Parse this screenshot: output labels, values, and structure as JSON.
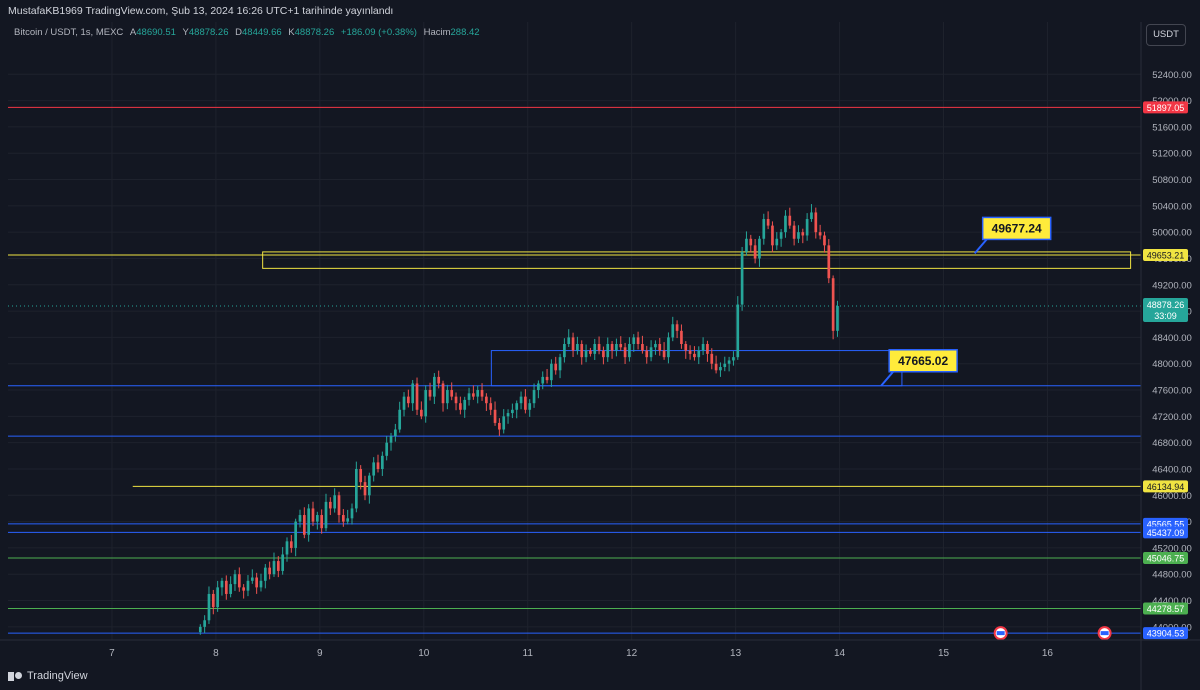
{
  "header": {
    "publisher": "MustafaKB1969 TradingView.com, Şub 13, 2024 16:26 UTC+1 tarihinde yayınlandı"
  },
  "legend": {
    "symbol": "Bitcoin / USDT, 1s, MEXC",
    "open_label": "A",
    "open": "48690.51",
    "high_label": "Y",
    "high": "48878.26",
    "low_label": "D",
    "low": "48449.66",
    "close_label": "K",
    "close": "48878.26",
    "change": "+186.09 (+0.38%)",
    "volume_label": "Hacim",
    "volume": "288.42"
  },
  "currency_button": "USDT",
  "footer": {
    "brand": "TradingView"
  },
  "colors": {
    "background": "#131722",
    "up": "#26a69a",
    "down": "#ef5350",
    "grid": "#1e222d",
    "yellow": "#f0e442",
    "blue": "#2962ff",
    "red": "#f23645",
    "green": "#4caf50"
  },
  "chart_data": {
    "type": "candlestick",
    "ylim": [
      43800,
      52800
    ],
    "y_ticks": [
      52400,
      52000,
      51600,
      51200,
      50800,
      50400,
      50000,
      49600,
      49200,
      48800,
      48400,
      48000,
      47600,
      47200,
      46800,
      46400,
      46000,
      45600,
      45200,
      44800,
      44400,
      44000
    ],
    "x_ticks": [
      {
        "label": "7",
        "day": 7
      },
      {
        "label": "8",
        "day": 8
      },
      {
        "label": "9",
        "day": 9
      },
      {
        "label": "10",
        "day": 10
      },
      {
        "label": "11",
        "day": 11
      },
      {
        "label": "12",
        "day": 12
      },
      {
        "label": "13",
        "day": 13
      },
      {
        "label": "14",
        "day": 14
      },
      {
        "label": "15",
        "day": 15
      },
      {
        "label": "16",
        "day": 16
      }
    ],
    "xlim_days": [
      6.0,
      16.9
    ],
    "candles_start_day": 7.85,
    "candle_step_days": 0.0417,
    "closes": [
      44000,
      44100,
      44500,
      44300,
      44600,
      44700,
      44500,
      44650,
      44800,
      44600,
      44550,
      44700,
      44750,
      44600,
      44700,
      44900,
      44800,
      45000,
      44850,
      45100,
      45300,
      45200,
      45600,
      45700,
      45400,
      45800,
      45600,
      45700,
      45500,
      45900,
      45800,
      46000,
      45700,
      45600,
      45650,
      45800,
      46400,
      46200,
      46000,
      46300,
      46500,
      46400,
      46600,
      46800,
      46900,
      47000,
      47300,
      47500,
      47400,
      47700,
      47300,
      47200,
      47600,
      47500,
      47800,
      47700,
      47400,
      47600,
      47500,
      47400,
      47300,
      47450,
      47550,
      47500,
      47600,
      47500,
      47400,
      47300,
      47100,
      47000,
      47200,
      47250,
      47300,
      47400,
      47500,
      47300,
      47400,
      47600,
      47700,
      47800,
      47750,
      48000,
      47900,
      48100,
      48300,
      48400,
      48200,
      48300,
      48100,
      48200,
      48150,
      48300,
      48200,
      48100,
      48300,
      48200,
      48300,
      48250,
      48100,
      48300,
      48400,
      48300,
      48200,
      48100,
      48250,
      48300,
      48200,
      48100,
      48400,
      48600,
      48500,
      48300,
      48200,
      48150,
      48100,
      48200,
      48300,
      48150,
      48000,
      47900,
      47950,
      48000,
      48050,
      48100,
      48900,
      49700,
      49900,
      49800,
      49600,
      49900,
      50200,
      50100,
      49800,
      49900,
      50000,
      50250,
      50100,
      49900,
      50000,
      49950,
      50200,
      50300,
      50000,
      49950,
      49800,
      49300,
      48500,
      48878
    ],
    "hlines": [
      {
        "value": 51897.05,
        "label": "51897.05",
        "color": "#f23645",
        "start_day": 6.0
      },
      {
        "value": 49653.21,
        "label": "49653.21",
        "color": "#f0e442",
        "start_day": 6.0
      },
      {
        "value": 47665.02,
        "label": "",
        "color": "#2962ff",
        "start_day": 6.0
      },
      {
        "value": 46900,
        "label": "",
        "color": "#2962ff",
        "start_day": 6.0
      },
      {
        "value": 46134.94,
        "label": "46134.94",
        "color": "#f0e442",
        "start_day": 7.2
      },
      {
        "value": 45565.55,
        "label": "45565.55",
        "color": "#2962ff",
        "start_day": 6.0
      },
      {
        "value": 45437.09,
        "label": "45437.09",
        "color": "#2962ff",
        "start_day": 6.0
      },
      {
        "value": 45046.75,
        "label": "45046.75",
        "color": "#4caf50",
        "start_day": 6.0
      },
      {
        "value": 44278.57,
        "label": "44278.57",
        "color": "#4caf50",
        "start_day": 6.0
      },
      {
        "value": 43904.53,
        "label": "43904.53",
        "color": "#2962ff",
        "start_day": 6.0
      }
    ],
    "rectangles": [
      {
        "x0_day": 8.45,
        "x1_day": 16.8,
        "y_top": 49700,
        "y_bottom": 49450,
        "color": "#f0e442"
      },
      {
        "x0_day": 10.65,
        "x1_day": 14.6,
        "y_top": 48200,
        "y_bottom": 47665,
        "color": "#2962ff"
      }
    ],
    "callouts": [
      {
        "text": "49677.24",
        "day": 15.3,
        "value": 49677.24,
        "box_color": "#ffeb3b"
      },
      {
        "text": "47665.02",
        "day": 14.4,
        "value": 47665.02,
        "box_color": "#ffeb3b"
      }
    ],
    "last_price": {
      "value": 48878.26,
      "label": "48878.26",
      "countdown": "33:09"
    }
  }
}
